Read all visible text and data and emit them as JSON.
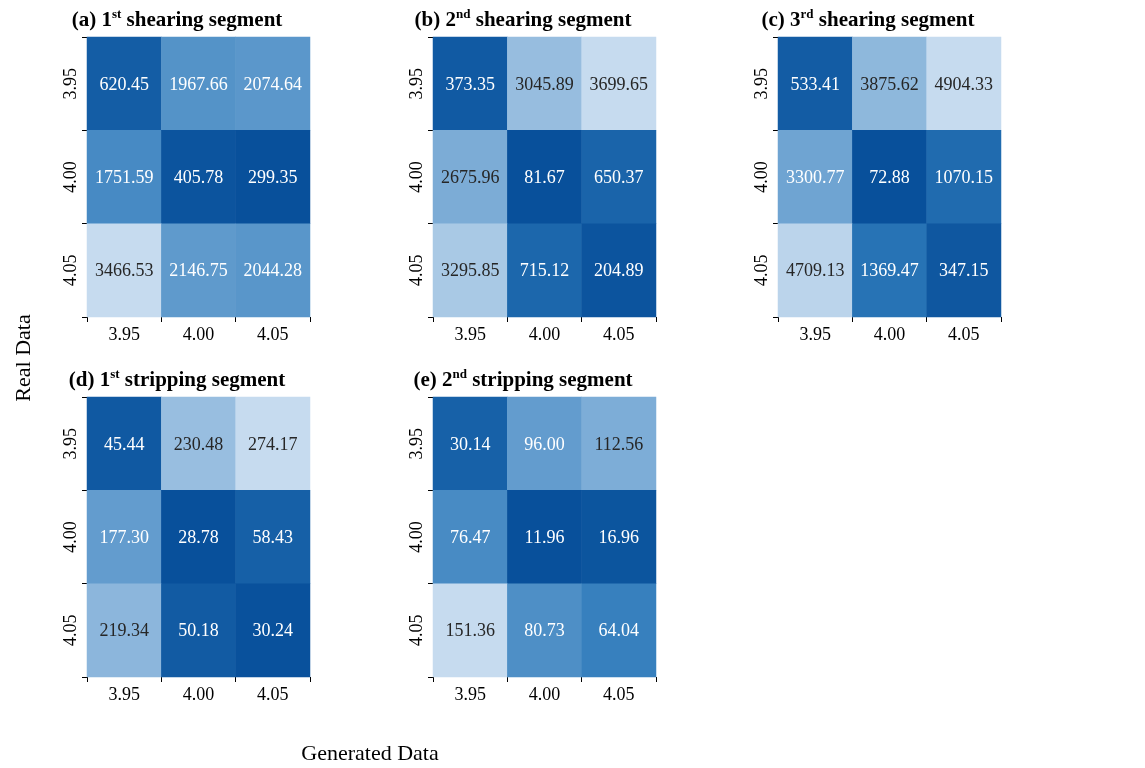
{
  "chart_data": [
    {
      "type": "heatmap",
      "title": "(a) 1$^{st}$ shearing segment",
      "xlabel": "Generated Data",
      "ylabel": "Real Data",
      "categories": [
        "3.95",
        "4.00",
        "4.05"
      ],
      "y_categories": [
        "3.95",
        "4.00",
        "4.05"
      ],
      "cells": [
        [
          620.45,
          1967.66,
          2074.64
        ],
        [
          1751.59,
          405.78,
          299.35
        ],
        [
          3466.53,
          2146.75,
          2044.28
        ]
      ],
      "cell_labels": [
        [
          "620.45",
          "1967.66",
          "2074.64"
        ],
        [
          "1751.59",
          "405.78",
          "299.35"
        ],
        [
          "3466.53",
          "2146.75",
          "2044.28"
        ]
      ]
    },
    {
      "type": "heatmap",
      "title": "(b) 2$^{nd}$ shearing segment",
      "categories": [
        "3.95",
        "4.00",
        "4.05"
      ],
      "y_categories": [
        "3.95",
        "4.00",
        "4.05"
      ],
      "cells": [
        [
          373.35,
          3045.89,
          3699.65
        ],
        [
          2675.96,
          81.67,
          650.37
        ],
        [
          3295.85,
          715.12,
          204.89
        ]
      ],
      "cell_labels": [
        [
          "373.35",
          "3045.89",
          "3699.65"
        ],
        [
          "2675.96",
          "81.67",
          "650.37"
        ],
        [
          "3295.85",
          "715.12",
          "204.89"
        ]
      ]
    },
    {
      "type": "heatmap",
      "title": "(c) 3$^{rd}$ shearing segment",
      "categories": [
        "3.95",
        "4.00",
        "4.05"
      ],
      "y_categories": [
        "3.95",
        "4.00",
        "4.05"
      ],
      "cells": [
        [
          533.41,
          3875.62,
          4904.33
        ],
        [
          3300.77,
          72.88,
          1070.15
        ],
        [
          4709.13,
          1369.47,
          347.15
        ]
      ],
      "cell_labels": [
        [
          "533.41",
          "3875.62",
          "4904.33"
        ],
        [
          "3300.77",
          "72.88",
          "1070.15"
        ],
        [
          "4709.13",
          "1369.47",
          "347.15"
        ]
      ]
    },
    {
      "type": "heatmap",
      "title": "(d) 1$^{st}$ stripping segment",
      "categories": [
        "3.95",
        "4.00",
        "4.05"
      ],
      "y_categories": [
        "3.95",
        "4.00",
        "4.05"
      ],
      "cells": [
        [
          45.44,
          230.48,
          274.17
        ],
        [
          177.3,
          28.78,
          58.43
        ],
        [
          219.34,
          50.18,
          30.24
        ]
      ],
      "cell_labels": [
        [
          "45.44",
          "230.48",
          "274.17"
        ],
        [
          "177.30",
          "28.78",
          "58.43"
        ],
        [
          "219.34",
          "50.18",
          "30.24"
        ]
      ]
    },
    {
      "type": "heatmap",
      "title": "(e) 2$^{nd}$ stripping segment",
      "categories": [
        "3.95",
        "4.00",
        "4.05"
      ],
      "y_categories": [
        "3.95",
        "4.00",
        "4.05"
      ],
      "cells": [
        [
          30.14,
          96.0,
          112.56
        ],
        [
          76.47,
          11.96,
          16.96
        ],
        [
          151.36,
          80.73,
          64.04
        ]
      ],
      "cell_labels": [
        [
          "30.14",
          "96.00",
          "112.56"
        ],
        [
          "76.47",
          "11.96",
          "16.96"
        ],
        [
          "151.36",
          "80.73",
          "64.04"
        ]
      ]
    }
  ]
}
